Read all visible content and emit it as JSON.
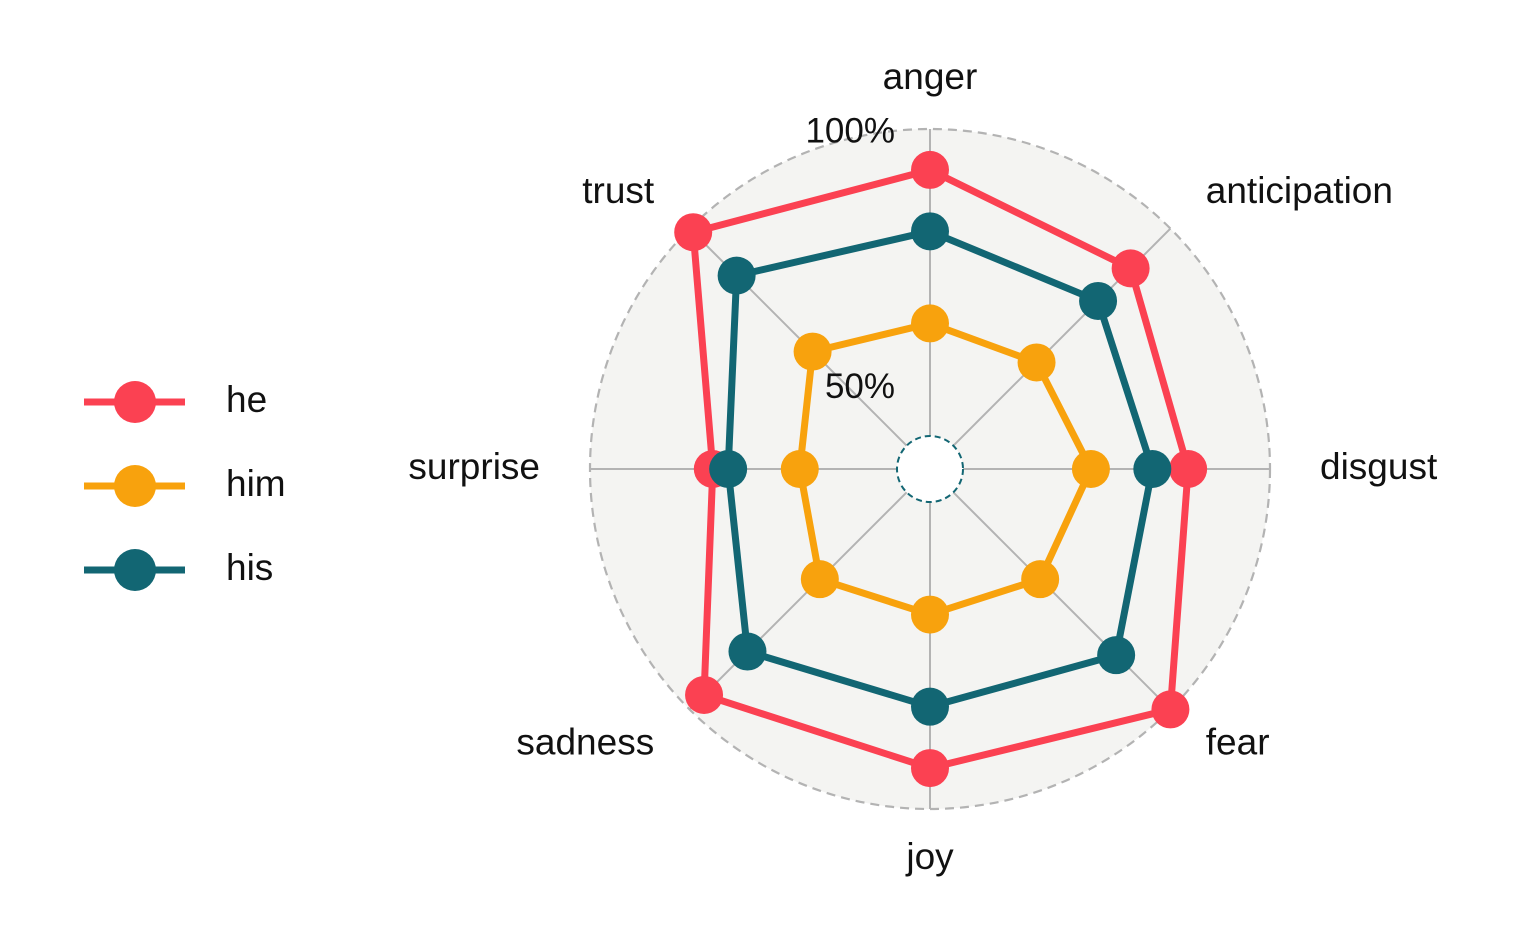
{
  "chart_data": {
    "type": "radar",
    "axes": [
      "anger",
      "anticipation",
      "disgust",
      "fear",
      "joy",
      "sadness",
      "surprise",
      "trust"
    ],
    "r_range": [
      40,
      100
    ],
    "inner_ring_value": 50,
    "tick_labels": [
      {
        "value": 100,
        "text": "100%"
      },
      {
        "value": 50,
        "text": "50%"
      }
    ],
    "grid": true,
    "legend_position": "left",
    "background_color": "#f4f4f2",
    "series": [
      {
        "name": "he",
        "color": "#fb4152",
        "values": [
          92,
          89,
          84,
          100,
          92,
          96,
          76,
          99
        ]
      },
      {
        "name": "him",
        "color": "#f8a20d",
        "values": [
          62,
          63,
          65,
          64,
          62,
          64,
          59,
          66
        ]
      },
      {
        "name": "his",
        "color": "#126673",
        "values": [
          80,
          80,
          77,
          85,
          80,
          84,
          73,
          87
        ]
      }
    ]
  }
}
